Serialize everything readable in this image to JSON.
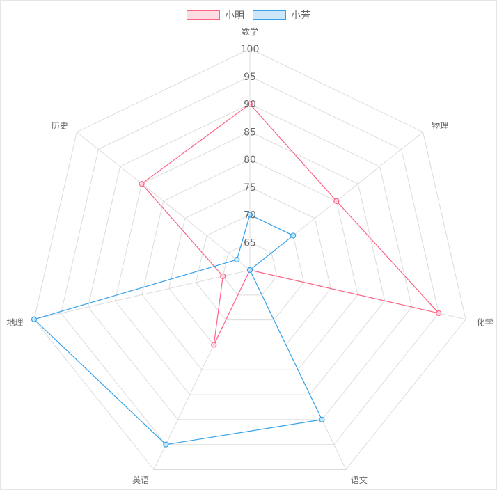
{
  "chart_data": {
    "type": "radar",
    "categories": [
      "数学",
      "物理",
      "化学",
      "语文",
      "英语",
      "地理",
      "历史"
    ],
    "rlim": [
      60,
      100
    ],
    "ticks": [
      65,
      70,
      75,
      80,
      85,
      90,
      95,
      100
    ],
    "grid": true,
    "legend_position": "top",
    "series": [
      {
        "name": "小明",
        "values": [
          90,
          80,
          95,
          60,
          75,
          65,
          85
        ],
        "stroke": "#ff6384",
        "fill": "#ffdbe2"
      },
      {
        "name": "小芳",
        "values": [
          70,
          70,
          60,
          90,
          95,
          100,
          63
        ],
        "stroke": "#36a2eb",
        "fill": "#cde7f8"
      }
    ]
  }
}
